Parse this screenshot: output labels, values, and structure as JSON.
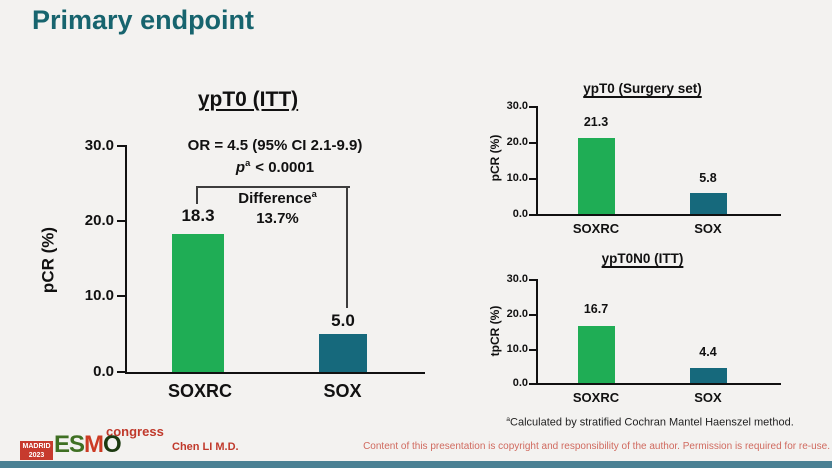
{
  "page": {
    "title": "Primary endpoint"
  },
  "colors": {
    "title_teal": "#17646e",
    "soxrc_bar_green": "#1fad55",
    "sox_bar_teal": "#16697c",
    "footer_red": "#c0392b",
    "bottom_band_teal": "#4a8093"
  },
  "chart_data": [
    {
      "type": "bar",
      "title": "ypT0 (ITT)",
      "categories": [
        "SOXRC",
        "SOX"
      ],
      "values": [
        18.3,
        5.0
      ],
      "value_labels": [
        "18.3",
        "5.0"
      ],
      "ylabel": "pCR (%)",
      "ylim": [
        0,
        30
      ],
      "yticks": [
        30.0,
        20.0,
        10.0,
        0.0
      ],
      "ytick_labels": [
        "30.0",
        "20.0",
        "10.0",
        "0.0"
      ],
      "bar_colors": [
        "#1fad55",
        "#16697c"
      ],
      "grid": false,
      "legend": "none",
      "annotations": {
        "or_text": "OR = 4.5 (95% CI 2.1-9.9)",
        "p_symbol": "p",
        "p_sup": "a",
        "p_rest": "< 0.0001",
        "difference_label": "Difference",
        "difference_sup": "a",
        "difference_value": "13.7%"
      }
    },
    {
      "type": "bar",
      "title": "ypT0 (Surgery set)",
      "categories": [
        "SOXRC",
        "SOX"
      ],
      "values": [
        21.3,
        5.8
      ],
      "value_labels": [
        "21.3",
        "5.8"
      ],
      "ylabel": "pCR (%)",
      "ylim": [
        0,
        30
      ],
      "yticks": [
        30.0,
        20.0,
        10.0,
        0.0
      ],
      "ytick_labels": [
        "30.0",
        "20.0",
        "10.0",
        "0.0"
      ],
      "bar_colors": [
        "#1fad55",
        "#16697c"
      ],
      "grid": false,
      "legend": "none"
    },
    {
      "type": "bar",
      "title": "ypT0N0 (ITT)",
      "categories": [
        "SOXRC",
        "SOX"
      ],
      "values": [
        16.7,
        4.4
      ],
      "value_labels": [
        "16.7",
        "4.4"
      ],
      "ylabel": "tpCR (%)",
      "ylim": [
        0,
        30
      ],
      "yticks": [
        30.0,
        20.0,
        10.0,
        0.0
      ],
      "ytick_labels": [
        "30.0",
        "20.0",
        "10.0",
        "0.0"
      ],
      "bar_colors": [
        "#1fad55",
        "#16697c"
      ],
      "grid": false,
      "legend": "none"
    }
  ],
  "footnote": {
    "sup": "a",
    "text": "Calculated by stratified Cochran Mantel Haenszel method."
  },
  "footer": {
    "logo": {
      "city": "MADRID",
      "year": "2023",
      "letters": [
        "E",
        "S",
        "M",
        "O"
      ],
      "event": "congress"
    },
    "presenter": "Chen LI M.D.",
    "disclaimer": "Content of this presentation is copyright and responsibility of the author. Permission is required for re-use."
  }
}
